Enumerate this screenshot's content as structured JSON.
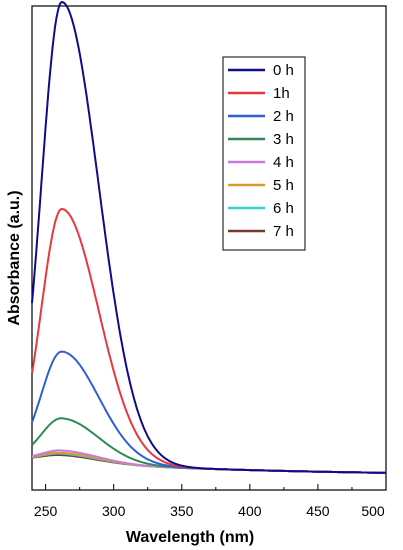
{
  "chart_data": {
    "type": "line",
    "xlabel": "Wavelength (nm)",
    "ylabel": "Absorbance (a.u.)",
    "xlim": [
      240,
      500
    ],
    "ylim": [
      0,
      1.0
    ],
    "x_ticks": [
      250,
      300,
      350,
      400,
      450,
      500
    ],
    "y_ticks_shown": false,
    "grid": false,
    "legend_position": "top-right",
    "series": [
      {
        "name": "0 h",
        "color": "#0d0d8a",
        "peak_x": 262,
        "peak_y": 1.0
      },
      {
        "name": "1h",
        "color": "#e8383d",
        "peak_x": 262,
        "peak_y": 0.55
      },
      {
        "name": "2 h",
        "color": "#2f5fd6",
        "peak_x": 262,
        "peak_y": 0.24
      },
      {
        "name": "3 h",
        "color": "#2e8b57",
        "peak_x": 262,
        "peak_y": 0.095
      },
      {
        "name": "4 h",
        "color": "#c77bdc",
        "peak_x": 262,
        "peak_y": 0.025
      },
      {
        "name": "5 h",
        "color": "#d99a2b",
        "peak_x": 262,
        "peak_y": 0.02
      },
      {
        "name": "6 h",
        "color": "#2fd3cf",
        "peak_x": 262,
        "peak_y": 0.018
      },
      {
        "name": "7 h",
        "color": "#7a3b2e",
        "peak_x": 262,
        "peak_y": 0.015
      }
    ]
  }
}
